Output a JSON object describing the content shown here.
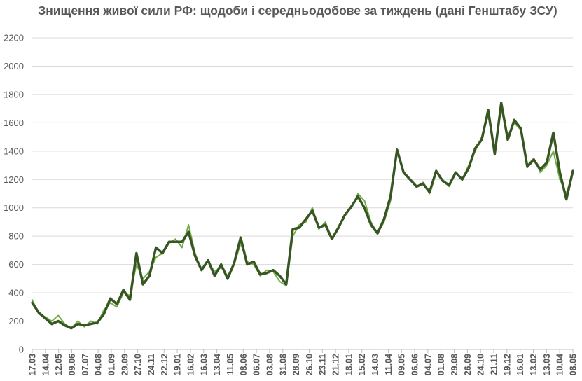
{
  "chart_data": {
    "type": "line",
    "title": "Знищення живої сили РФ: щодоби і середньодобове за тиждень (дані Генштабу ЗСУ)",
    "xlabel": "",
    "ylabel": "",
    "ylim": [
      0,
      2200
    ],
    "yticks": [
      "0",
      "200",
      "400",
      "600",
      "800",
      "1000",
      "1200",
      "1400",
      "1600",
      "1800",
      "2000",
      "2200"
    ],
    "grid": true,
    "legend": "none",
    "xticks": [
      "17.03",
      "14.04",
      "12.05",
      "09.06",
      "07.07",
      "04.08",
      "01.09",
      "29.09",
      "27.10",
      "24.11",
      "22.12",
      "19.01",
      "16.02",
      "16.03",
      "13.04",
      "11.05",
      "08.06",
      "06.07",
      "03.08",
      "31.08",
      "28.09",
      "26.10",
      "23.11",
      "21.12",
      "18.01",
      "15.02",
      "14.03",
      "11.04",
      "09.05",
      "06.06",
      "04.07",
      "01.08",
      "29.08",
      "26.09",
      "24.10",
      "21.11",
      "19.12",
      "16.01",
      "13.02",
      "13.03",
      "10.04",
      "08.05"
    ],
    "x": [
      "17.03",
      "31.03",
      "14.04",
      "28.04",
      "12.05",
      "26.05",
      "09.06",
      "23.06",
      "07.07",
      "21.07",
      "04.08",
      "18.08",
      "01.09",
      "15.09",
      "29.09",
      "13.10",
      "27.10",
      "10.11",
      "24.11",
      "08.12",
      "22.12",
      "05.01",
      "19.01",
      "02.02",
      "16.02",
      "02.03",
      "16.03",
      "30.03",
      "13.04",
      "27.04",
      "11.05",
      "25.05",
      "08.06",
      "22.06",
      "06.07",
      "20.07",
      "03.08",
      "17.08",
      "31.08",
      "14.09",
      "28.09",
      "12.10",
      "26.10",
      "09.11",
      "23.11",
      "07.12",
      "21.12",
      "04.01",
      "18.01",
      "01.02",
      "15.02",
      "29.02",
      "14.03",
      "28.03",
      "11.04",
      "25.04",
      "09.05",
      "23.05",
      "06.06",
      "20.06",
      "04.07",
      "18.07",
      "01.08",
      "15.08",
      "29.08",
      "12.09",
      "26.09",
      "10.10",
      "24.10",
      "07.11",
      "21.11",
      "05.12",
      "19.12",
      "02.01",
      "16.01",
      "30.01",
      "13.02",
      "27.02",
      "13.03",
      "27.03",
      "10.04",
      "24.04",
      "08.05",
      "15.05"
    ],
    "series": [
      {
        "color": "#70AD47",
        "values": [
          350,
          250,
          230,
          200,
          240,
          180,
          150,
          200,
          160,
          200,
          180,
          280,
          330,
          300,
          400,
          380,
          600,
          500,
          550,
          650,
          680,
          750,
          780,
          720,
          880,
          680,
          560,
          620,
          550,
          580,
          520,
          600,
          750,
          620,
          600,
          520,
          560,
          550,
          480,
          450,
          800,
          880,
          900,
          1000,
          850,
          900,
          780,
          850,
          950,
          1000,
          1100,
          1050,
          900,
          820,
          900,
          1050,
          1400,
          1250,
          1200,
          1150,
          1180,
          1100,
          1250,
          1200,
          1150,
          1250,
          1200,
          1300,
          1400,
          1500,
          1650,
          1400,
          1700,
          1500,
          1600,
          1550,
          1300,
          1350,
          1250,
          1300,
          1400,
          1200,
          1100,
          1250
        ]
      },
      {
        "color": "#375623",
        "values": [
          330,
          260,
          220,
          180,
          200,
          170,
          150,
          180,
          170,
          180,
          190,
          250,
          360,
          320,
          420,
          350,
          680,
          460,
          520,
          720,
          680,
          760,
          760,
          760,
          830,
          660,
          560,
          630,
          520,
          600,
          500,
          610,
          790,
          600,
          620,
          530,
          540,
          560,
          520,
          460,
          850,
          860,
          920,
          980,
          860,
          880,
          780,
          860,
          950,
          1010,
          1080,
          1000,
          880,
          820,
          920,
          1080,
          1410,
          1250,
          1200,
          1150,
          1170,
          1110,
          1260,
          1190,
          1160,
          1250,
          1200,
          1280,
          1420,
          1480,
          1690,
          1380,
          1740,
          1480,
          1620,
          1560,
          1290,
          1340,
          1270,
          1320,
          1530,
          1250,
          1060,
          1260
        ]
      }
    ]
  }
}
